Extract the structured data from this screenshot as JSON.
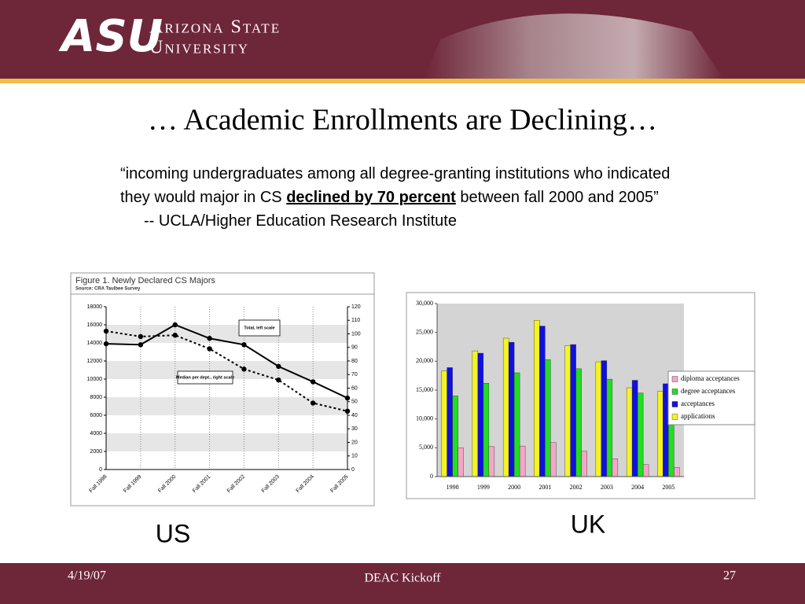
{
  "header": {
    "logo": "ASU",
    "university_lines": [
      "Arizona State",
      "University"
    ]
  },
  "title": "… Academic Enrollments are Declining…",
  "quote": {
    "before": "“incoming undergraduates among all degree-granting institutions who indicated they would major in CS ",
    "emphasis": "declined by 70 percent",
    "after": " between fall 2000 and 2005”",
    "attribution": "-- UCLA/Higher Education Research Institute"
  },
  "chart_data": [
    {
      "type": "line",
      "title": "Figure 1. Newly Declared CS Majors",
      "subtitle": "Source: CRA Taulbee Survey",
      "categories": [
        "Fall 1998",
        "Fall 1999",
        "Fall 2000",
        "Fall 2001",
        "Fall 2002",
        "Fall 2003",
        "Fall 2004",
        "Fall 2005"
      ],
      "series": [
        {
          "name": "Total, left scale",
          "color": "#000000",
          "style": "solid",
          "values": [
            13900,
            13800,
            16000,
            14500,
            13800,
            11400,
            9700,
            7900
          ]
        },
        {
          "name": "Median per dept., right scale",
          "color": "#000000",
          "style": "dotted",
          "axis": "y2",
          "values": [
            102,
            98,
            99,
            89,
            74,
            66,
            49,
            43
          ]
        }
      ],
      "ylim": [
        0,
        18000
      ],
      "yticks": [
        0,
        2000,
        4000,
        6000,
        8000,
        10000,
        12000,
        14000,
        16000,
        18000
      ],
      "y2lim": [
        0,
        120
      ],
      "y2ticks": [
        0,
        10,
        20,
        30,
        40,
        50,
        60,
        70,
        80,
        90,
        100,
        110,
        120
      ],
      "grid": true
    },
    {
      "type": "bar",
      "categories": [
        "1998",
        "1999",
        "2000",
        "2001",
        "2002",
        "2003",
        "2004",
        "2005"
      ],
      "series": [
        {
          "name": "diploma acceptances",
          "color": "#f4a6c8",
          "values": [
            5000,
            5200,
            5300,
            5900,
            4400,
            3100,
            2100,
            1600
          ]
        },
        {
          "name": "degree acceptances",
          "color": "#22dd22",
          "values": [
            14000,
            16200,
            18000,
            20300,
            18700,
            16900,
            14500,
            10000
          ]
        },
        {
          "name": "acceptances",
          "color": "#1010e0",
          "values": [
            18900,
            21400,
            23300,
            26100,
            22900,
            20100,
            16700,
            16100
          ]
        },
        {
          "name": "applications",
          "color": "#f4f420",
          "values": [
            18300,
            21800,
            24000,
            27100,
            22700,
            19900,
            15400,
            14800
          ]
        }
      ],
      "ylim": [
        0,
        30000
      ],
      "yticks": [
        0,
        {
          "value": 5000,
          "label": "5,000"
        },
        {
          "value": 10000,
          "label": "10,000"
        },
        {
          "value": 15000,
          "label": "15,000"
        },
        {
          "value": 20000,
          "label": "20,000"
        },
        {
          "value": 25000,
          "label": "25,000"
        },
        {
          "value": 30000,
          "label": "30,000"
        }
      ],
      "legend": "right"
    }
  ],
  "chart_labels": [
    "US",
    "UK"
  ],
  "footer": {
    "date": "4/19/07",
    "center": "DEAC Kickoff",
    "page": "27"
  }
}
